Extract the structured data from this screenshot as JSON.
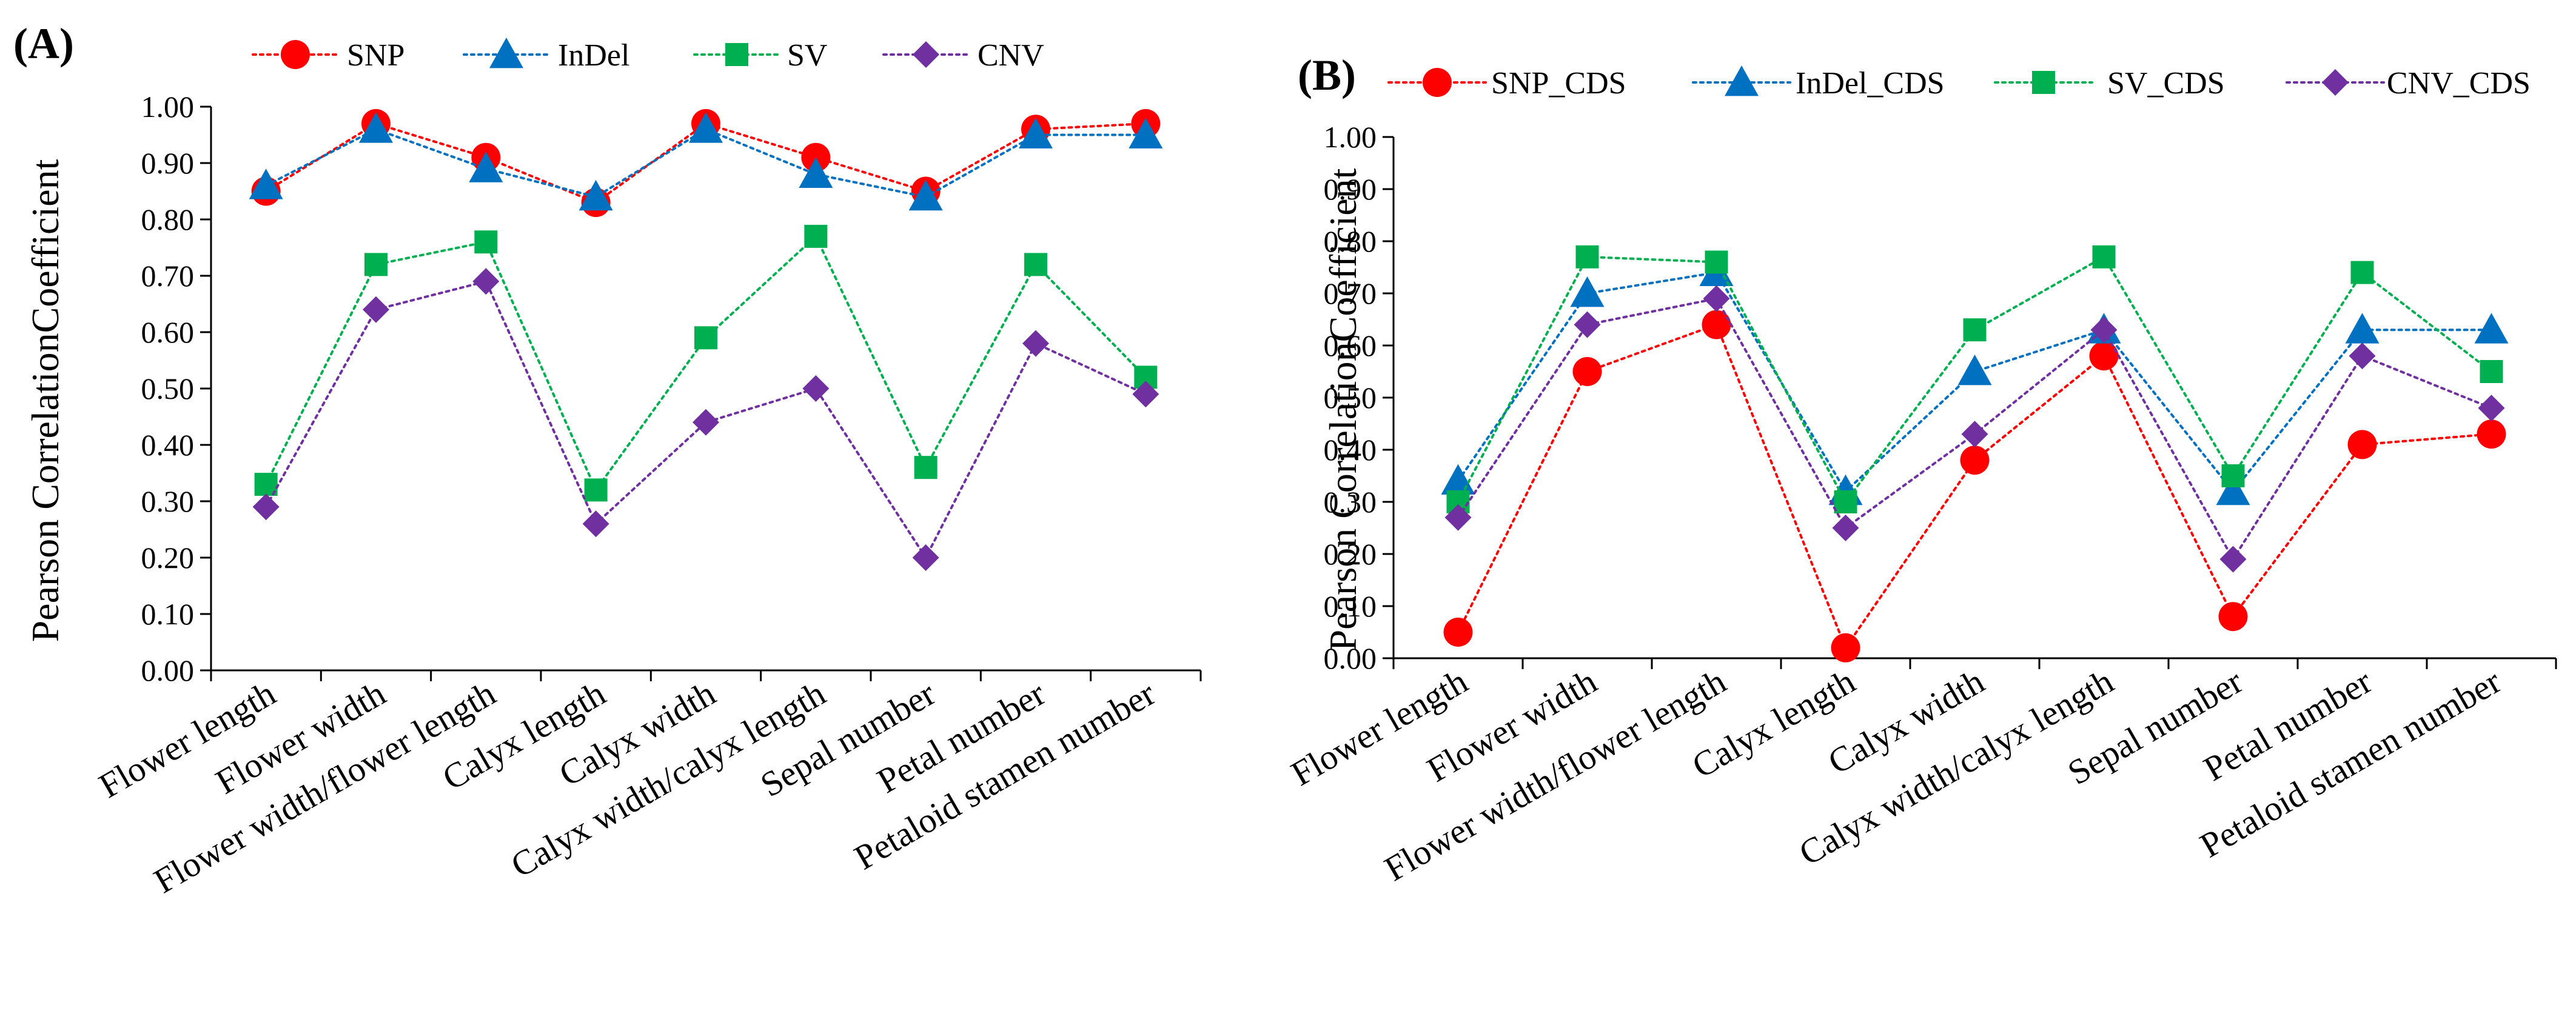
{
  "colors": {
    "snp": "#ff0000",
    "indel": "#0070c0",
    "sv": "#00b050",
    "cnv": "#7030a0"
  },
  "chart_data": [
    {
      "type": "line",
      "panel_label": "(A)",
      "ylabel": "Pearson CorrelationCoefficient",
      "ylim": [
        0,
        1
      ],
      "yticks": [
        "0.00",
        "0.10",
        "0.20",
        "0.30",
        "0.40",
        "0.50",
        "0.60",
        "0.70",
        "0.80",
        "0.90",
        "1.00"
      ],
      "legend_position": "top",
      "categories": [
        "Flower length",
        "Flower width",
        "Flower width/flower length",
        "Calyx length",
        "Calyx width",
        "Calyx width/calyx length",
        "Sepal number",
        "Petal number",
        "Petaloid stamen number"
      ],
      "series": [
        {
          "name": "SNP",
          "marker": "circle",
          "color_key": "snp",
          "values": [
            0.85,
            0.97,
            0.91,
            0.83,
            0.97,
            0.91,
            0.85,
            0.96,
            0.97
          ]
        },
        {
          "name": "InDel",
          "marker": "triangle",
          "color_key": "indel",
          "values": [
            0.86,
            0.96,
            0.89,
            0.84,
            0.96,
            0.88,
            0.84,
            0.95,
            0.95
          ]
        },
        {
          "name": "SV",
          "marker": "square",
          "color_key": "sv",
          "values": [
            0.33,
            0.72,
            0.76,
            0.32,
            0.59,
            0.77,
            0.36,
            0.72,
            0.52
          ]
        },
        {
          "name": "CNV",
          "marker": "diamond",
          "color_key": "cnv",
          "values": [
            0.29,
            0.64,
            0.69,
            0.26,
            0.44,
            0.5,
            0.2,
            0.58,
            0.49
          ]
        }
      ]
    },
    {
      "type": "line",
      "panel_label": "(B)",
      "ylabel": "Pearson CorrelationCoefficient",
      "ylim": [
        0,
        1
      ],
      "yticks": [
        "0.00",
        "0.10",
        "0.20",
        "0.30",
        "0.40",
        "0.50",
        "0.60",
        "0.70",
        "0.80",
        "0.90",
        "1.00"
      ],
      "legend_position": "top",
      "categories": [
        "Flower length",
        "Flower width",
        "Flower width/flower length",
        "Calyx length",
        "Calyx width",
        "Calyx width/calyx length",
        "Sepal number",
        "Petal number",
        "Petaloid stamen number"
      ],
      "series": [
        {
          "name": "SNP_CDS",
          "marker": "circle",
          "color_key": "snp",
          "values": [
            0.05,
            0.55,
            0.64,
            0.02,
            0.38,
            0.58,
            0.08,
            0.41,
            0.43
          ]
        },
        {
          "name": "InDel_CDS",
          "marker": "triangle",
          "color_key": "indel",
          "values": [
            0.34,
            0.7,
            0.74,
            0.32,
            0.55,
            0.63,
            0.32,
            0.63,
            0.63
          ]
        },
        {
          "name": "SV_CDS",
          "marker": "square",
          "color_key": "sv",
          "values": [
            0.3,
            0.77,
            0.76,
            0.3,
            0.63,
            0.77,
            0.35,
            0.74,
            0.55
          ]
        },
        {
          "name": "CNV_CDS",
          "marker": "diamond",
          "color_key": "cnv",
          "values": [
            0.27,
            0.64,
            0.69,
            0.25,
            0.43,
            0.63,
            0.19,
            0.58,
            0.48
          ]
        }
      ]
    }
  ]
}
